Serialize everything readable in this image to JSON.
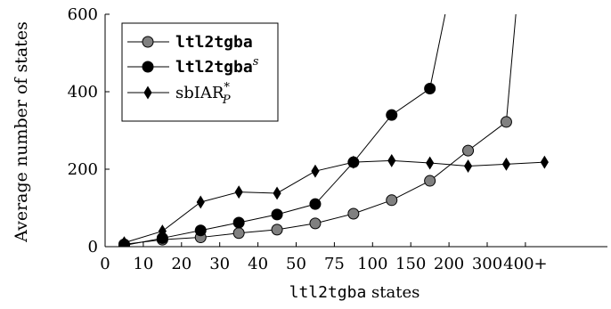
{
  "chart_data": {
    "type": "line",
    "ylabel": "Average number of states",
    "xlabel": {
      "mono": "ltl2tgba",
      "text": " states"
    },
    "x_ticks": [
      "0",
      "10",
      "20",
      "30",
      "40",
      "50",
      "75",
      "100",
      "150",
      "200",
      "300",
      "400+"
    ],
    "ylim": [
      0,
      600
    ],
    "y_ticks": [
      0,
      200,
      400,
      600
    ],
    "legend_position": "top-left",
    "grid": false,
    "series": [
      {
        "key": "ltl2tgba_dark",
        "legend_main": "ltl2tgba",
        "legend_sup": "",
        "legend_sub": "",
        "marker": "circle",
        "fill": "#808080",
        "values": [
          {
            "x": 5,
            "y": 6
          },
          {
            "x": 15,
            "y": 18
          },
          {
            "x": 25,
            "y": 24
          },
          {
            "x": 35,
            "y": 35
          },
          {
            "x": 45,
            "y": 44
          },
          {
            "x": 62.5,
            "y": 60
          },
          {
            "x": 87.5,
            "y": 85
          },
          {
            "x": 125,
            "y": 120
          },
          {
            "x": 175,
            "y": 170
          },
          {
            "x": 250,
            "y": 248
          },
          {
            "x": 350,
            "y": 322
          },
          {
            "x": 375,
            "y": 600
          }
        ]
      },
      {
        "key": "ltl2tgba_s",
        "legend_main": "ltl2tgba",
        "legend_sup": "s",
        "legend_sub": "",
        "marker": "circle",
        "fill": "#000000",
        "values": [
          {
            "x": 5,
            "y": 3
          },
          {
            "x": 15,
            "y": 22
          },
          {
            "x": 25,
            "y": 42
          },
          {
            "x": 35,
            "y": 62
          },
          {
            "x": 45,
            "y": 83
          },
          {
            "x": 62.5,
            "y": 110
          },
          {
            "x": 87.5,
            "y": 218
          },
          {
            "x": 125,
            "y": 340
          },
          {
            "x": 175,
            "y": 408
          },
          {
            "x": 195,
            "y": 600
          }
        ]
      },
      {
        "key": "sbiar",
        "legend_main": "sbIAR",
        "legend_sup": "*",
        "legend_sub": "P",
        "marker": "diamond",
        "fill": "#000000",
        "values": [
          {
            "x": 5,
            "y": 10
          },
          {
            "x": 15,
            "y": 40
          },
          {
            "x": 25,
            "y": 115
          },
          {
            "x": 35,
            "y": 141
          },
          {
            "x": 45,
            "y": 138
          },
          {
            "x": 62.5,
            "y": 195
          },
          {
            "x": 87.5,
            "y": 218
          },
          {
            "x": 125,
            "y": 222
          },
          {
            "x": 175,
            "y": 216
          },
          {
            "x": 250,
            "y": 208
          },
          {
            "x": 350,
            "y": 213
          },
          {
            "x": 450,
            "y": 218
          }
        ]
      }
    ]
  }
}
